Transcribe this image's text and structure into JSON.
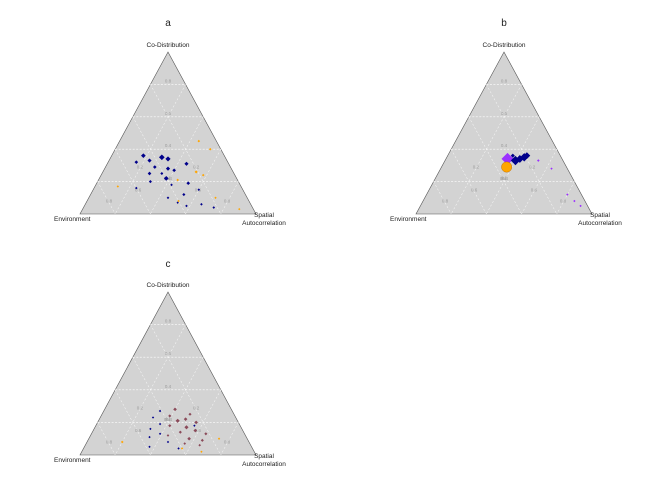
{
  "chart_data": [
    {
      "type": "ternary-scatter",
      "title": "a",
      "vertices": {
        "top": "Co-Distribution",
        "left": "Environment",
        "right": [
          "Spatial",
          "Autocorrelation"
        ]
      },
      "grid_levels": [
        0.2,
        0.4,
        0.6,
        0.8
      ],
      "tick_labels": [
        "0.2",
        "0.4",
        "0.6",
        "0.8"
      ],
      "colors": {
        "navy": "#00008b",
        "orange": "#ffa500",
        "purple": "#9b30ff",
        "brown": "#8b4b5a"
      },
      "points": [
        {
          "top": 0.35,
          "left": 0.36,
          "right": 0.29,
          "color": "navy",
          "size": 2.2
        },
        {
          "top": 0.34,
          "left": 0.33,
          "right": 0.33,
          "color": "navy",
          "size": 2.0
        },
        {
          "top": 0.36,
          "left": 0.46,
          "right": 0.18,
          "color": "navy",
          "size": 1.8
        },
        {
          "top": 0.33,
          "left": 0.44,
          "right": 0.23,
          "color": "navy",
          "size": 1.6
        },
        {
          "top": 0.32,
          "left": 0.52,
          "right": 0.16,
          "color": "navy",
          "size": 1.4
        },
        {
          "top": 0.31,
          "left": 0.24,
          "right": 0.45,
          "color": "navy",
          "size": 1.6
        },
        {
          "top": 0.29,
          "left": 0.43,
          "right": 0.28,
          "color": "navy",
          "size": 1.4
        },
        {
          "top": 0.28,
          "left": 0.36,
          "right": 0.36,
          "color": "navy",
          "size": 1.6
        },
        {
          "top": 0.27,
          "left": 0.33,
          "right": 0.4,
          "color": "navy",
          "size": 1.4
        },
        {
          "top": 0.25,
          "left": 0.48,
          "right": 0.27,
          "color": "navy",
          "size": 1.4
        },
        {
          "top": 0.25,
          "left": 0.41,
          "right": 0.34,
          "color": "navy",
          "size": 1.2
        },
        {
          "top": 0.22,
          "left": 0.4,
          "right": 0.38,
          "color": "navy",
          "size": 1.8
        },
        {
          "top": 0.2,
          "left": 0.5,
          "right": 0.3,
          "color": "navy",
          "size": 1.2
        },
        {
          "top": 0.19,
          "left": 0.29,
          "right": 0.52,
          "color": "navy",
          "size": 1.4
        },
        {
          "top": 0.18,
          "left": 0.39,
          "right": 0.43,
          "color": "navy",
          "size": 1.0
        },
        {
          "top": 0.16,
          "left": 0.6,
          "right": 0.24,
          "color": "navy",
          "size": 1.0
        },
        {
          "top": 0.15,
          "left": 0.25,
          "right": 0.6,
          "color": "navy",
          "size": 1.0
        },
        {
          "top": 0.12,
          "left": 0.35,
          "right": 0.53,
          "color": "navy",
          "size": 1.2
        },
        {
          "top": 0.1,
          "left": 0.45,
          "right": 0.45,
          "color": "navy",
          "size": 1.0
        },
        {
          "top": 0.06,
          "left": 0.28,
          "right": 0.66,
          "color": "navy",
          "size": 1.0
        },
        {
          "top": 0.05,
          "left": 0.37,
          "right": 0.58,
          "color": "navy",
          "size": 1.0
        },
        {
          "top": 0.04,
          "left": 0.22,
          "right": 0.74,
          "color": "navy",
          "size": 1.0
        },
        {
          "top": 0.07,
          "left": 0.41,
          "right": 0.52,
          "color": "navy",
          "size": 0.9
        },
        {
          "top": 0.45,
          "left": 0.1,
          "right": 0.45,
          "color": "orange",
          "size": 1.0
        },
        {
          "top": 0.4,
          "left": 0.06,
          "right": 0.54,
          "color": "orange",
          "size": 1.0
        },
        {
          "top": 0.26,
          "left": 0.21,
          "right": 0.53,
          "color": "orange",
          "size": 1.2
        },
        {
          "top": 0.24,
          "left": 0.18,
          "right": 0.58,
          "color": "orange",
          "size": 1.0
        },
        {
          "top": 0.21,
          "left": 0.34,
          "right": 0.45,
          "color": "orange",
          "size": 1.0
        },
        {
          "top": 0.17,
          "left": 0.7,
          "right": 0.13,
          "color": "orange",
          "size": 0.9
        },
        {
          "top": 0.1,
          "left": 0.18,
          "right": 0.72,
          "color": "orange",
          "size": 0.9
        },
        {
          "top": 0.08,
          "left": 0.4,
          "right": 0.52,
          "color": "orange",
          "size": 0.9
        },
        {
          "top": 0.03,
          "left": 0.08,
          "right": 0.89,
          "color": "orange",
          "size": 0.9
        }
      ]
    },
    {
      "type": "ternary-scatter",
      "title": "b",
      "vertices": {
        "top": "Co-Distribution",
        "left": "Environment",
        "right": [
          "Spatial",
          "Autocorrelation"
        ]
      },
      "grid_levels": [
        0.2,
        0.4,
        0.6,
        0.8
      ],
      "tick_labels": [
        "0.2",
        "0.4",
        "0.6",
        "0.8"
      ],
      "colors": {
        "navy": "#00008b",
        "orange": "#ffa500",
        "purple": "#9b30ff",
        "brown": "#8b4b5a"
      },
      "points": [
        {
          "top": 0.34,
          "left": 0.31,
          "right": 0.35,
          "color": "purple",
          "size": 4.2
        },
        {
          "top": 0.29,
          "left": 0.34,
          "right": 0.37,
          "color": "orange",
          "size": 4.0
        },
        {
          "top": 0.33,
          "left": 0.27,
          "right": 0.4,
          "color": "navy",
          "size": 3.6
        },
        {
          "top": 0.34,
          "left": 0.24,
          "right": 0.42,
          "color": "navy",
          "size": 3.0
        },
        {
          "top": 0.35,
          "left": 0.21,
          "right": 0.44,
          "color": "navy",
          "size": 3.2
        },
        {
          "top": 0.36,
          "left": 0.19,
          "right": 0.45,
          "color": "navy",
          "size": 2.6
        },
        {
          "top": 0.33,
          "left": 0.14,
          "right": 0.53,
          "color": "purple",
          "size": 1.0
        },
        {
          "top": 0.28,
          "left": 0.09,
          "right": 0.63,
          "color": "purple",
          "size": 0.9
        },
        {
          "top": 0.12,
          "left": 0.08,
          "right": 0.8,
          "color": "purple",
          "size": 0.9
        },
        {
          "top": 0.08,
          "left": 0.06,
          "right": 0.86,
          "color": "purple",
          "size": 0.9
        },
        {
          "top": 0.05,
          "left": 0.04,
          "right": 0.91,
          "color": "purple",
          "size": 0.9
        },
        {
          "top": 0.36,
          "left": 0.27,
          "right": 0.37,
          "color": "navy",
          "size": 1.6
        }
      ]
    },
    {
      "type": "ternary-scatter",
      "title": "c",
      "vertices": {
        "top": "Co-Distribution",
        "left": "Environment",
        "right": [
          "Spatial",
          "Autocorrelation"
        ]
      },
      "grid_levels": [
        0.2,
        0.4,
        0.6,
        0.8
      ],
      "tick_labels": [
        "0.2",
        "0.4",
        "0.6",
        "0.8"
      ],
      "colors": {
        "navy": "#00008b",
        "orange": "#ffa500",
        "purple": "#9b30ff",
        "brown": "#8b4b5a"
      },
      "points": [
        {
          "top": 0.28,
          "left": 0.32,
          "right": 0.4,
          "color": "brown",
          "size": 1.4
        },
        {
          "top": 0.25,
          "left": 0.25,
          "right": 0.5,
          "color": "brown",
          "size": 1.2
        },
        {
          "top": 0.24,
          "left": 0.37,
          "right": 0.39,
          "color": "brown",
          "size": 1.2
        },
        {
          "top": 0.22,
          "left": 0.29,
          "right": 0.49,
          "color": "brown",
          "size": 1.4
        },
        {
          "top": 0.21,
          "left": 0.34,
          "right": 0.45,
          "color": "brown",
          "size": 1.6
        },
        {
          "top": 0.2,
          "left": 0.24,
          "right": 0.56,
          "color": "brown",
          "size": 1.4
        },
        {
          "top": 0.18,
          "left": 0.4,
          "right": 0.42,
          "color": "brown",
          "size": 1.2
        },
        {
          "top": 0.17,
          "left": 0.31,
          "right": 0.52,
          "color": "brown",
          "size": 1.6
        },
        {
          "top": 0.15,
          "left": 0.27,
          "right": 0.58,
          "color": "brown",
          "size": 1.4
        },
        {
          "top": 0.14,
          "left": 0.36,
          "right": 0.5,
          "color": "brown",
          "size": 1.2
        },
        {
          "top": 0.13,
          "left": 0.22,
          "right": 0.65,
          "color": "brown",
          "size": 1.2
        },
        {
          "top": 0.12,
          "left": 0.44,
          "right": 0.44,
          "color": "brown",
          "size": 1.0
        },
        {
          "top": 0.1,
          "left": 0.33,
          "right": 0.57,
          "color": "brown",
          "size": 1.4
        },
        {
          "top": 0.09,
          "left": 0.26,
          "right": 0.65,
          "color": "brown",
          "size": 1.2
        },
        {
          "top": 0.07,
          "left": 0.37,
          "right": 0.56,
          "color": "brown",
          "size": 1.0
        },
        {
          "top": 0.06,
          "left": 0.29,
          "right": 0.65,
          "color": "brown",
          "size": 1.0
        },
        {
          "top": 0.27,
          "left": 0.41,
          "right": 0.32,
          "color": "navy",
          "size": 1.0
        },
        {
          "top": 0.23,
          "left": 0.47,
          "right": 0.3,
          "color": "navy",
          "size": 0.9
        },
        {
          "top": 0.19,
          "left": 0.45,
          "right": 0.36,
          "color": "navy",
          "size": 0.9
        },
        {
          "top": 0.16,
          "left": 0.52,
          "right": 0.32,
          "color": "navy",
          "size": 0.9
        },
        {
          "top": 0.13,
          "left": 0.48,
          "right": 0.39,
          "color": "navy",
          "size": 0.9
        },
        {
          "top": 0.11,
          "left": 0.55,
          "right": 0.34,
          "color": "navy",
          "size": 0.9
        },
        {
          "top": 0.08,
          "left": 0.46,
          "right": 0.46,
          "color": "navy",
          "size": 0.9
        },
        {
          "top": 0.05,
          "left": 0.58,
          "right": 0.37,
          "color": "navy",
          "size": 0.9
        },
        {
          "top": 0.04,
          "left": 0.42,
          "right": 0.54,
          "color": "navy",
          "size": 0.9
        },
        {
          "top": 0.18,
          "left": 0.26,
          "right": 0.56,
          "color": "navy",
          "size": 0.9
        },
        {
          "top": 0.08,
          "left": 0.72,
          "right": 0.2,
          "color": "orange",
          "size": 1.0
        },
        {
          "top": 0.04,
          "left": 0.4,
          "right": 0.56,
          "color": "orange",
          "size": 0.9
        },
        {
          "top": 0.1,
          "left": 0.16,
          "right": 0.74,
          "color": "orange",
          "size": 0.9
        },
        {
          "top": 0.02,
          "left": 0.3,
          "right": 0.68,
          "color": "orange",
          "size": 0.9
        }
      ]
    }
  ]
}
